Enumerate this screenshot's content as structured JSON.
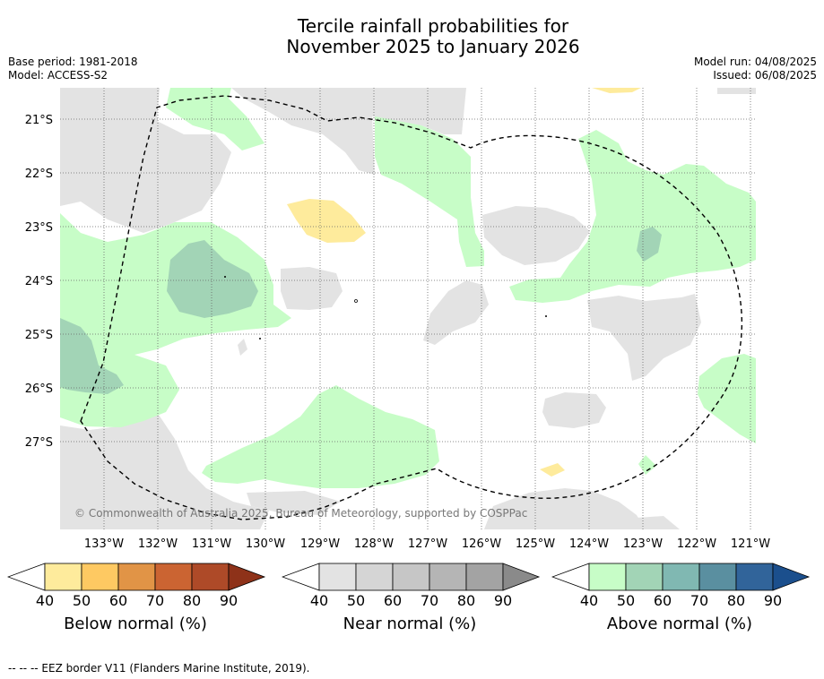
{
  "header": {
    "title_line1": "Tercile rainfall probabilities for",
    "title_line2": "November 2025 to January 2026",
    "base_period": "Base period: 1981-2018",
    "model": "Model: ACCESS-S2",
    "model_run": "Model run: 04/08/2025",
    "issued": "Issued: 06/08/2025"
  },
  "map": {
    "lat_labels": [
      "21°S",
      "22°S",
      "23°S",
      "24°S",
      "25°S",
      "26°S",
      "27°S"
    ],
    "lon_labels": [
      "133°W",
      "132°W",
      "131°W",
      "130°W",
      "129°W",
      "128°W",
      "127°W",
      "126°W",
      "125°W",
      "124°W",
      "123°W",
      "122°W",
      "121°W"
    ],
    "copyright": "© Commonwealth of Australia 2025, Bureau of Meteorology, supported by COSPPac",
    "colors": {
      "near": "#e3e3e3",
      "above40": "#c7fdc7",
      "above50": "#a2d4b6",
      "below40": "#feeb9c",
      "eez": "#000000",
      "grid": "#666666"
    }
  },
  "legends": [
    {
      "label": "Below normal (%)",
      "ticks": [
        "40",
        "50",
        "60",
        "70",
        "80",
        "90"
      ],
      "colors": [
        "#feeb9c",
        "#fec962",
        "#e19446",
        "#cb6432",
        "#ae4a28",
        "#8e3219"
      ]
    },
    {
      "label": "Near normal (%)",
      "ticks": [
        "40",
        "50",
        "60",
        "70",
        "80",
        "90"
      ],
      "colors": [
        "#e3e3e3",
        "#d5d5d5",
        "#c6c6c6",
        "#b5b5b5",
        "#a3a3a3",
        "#8a8a8a"
      ]
    },
    {
      "label": "Above normal (%)",
      "ticks": [
        "40",
        "50",
        "60",
        "70",
        "80",
        "90"
      ],
      "colors": [
        "#c7fdc7",
        "#a2d4b6",
        "#80b8b2",
        "#5a8fa0",
        "#31649a",
        "#1b4f8d"
      ]
    }
  ],
  "footnote": "--  --  -- EEZ border V11 (Flanders Marine Institute, 2019)."
}
